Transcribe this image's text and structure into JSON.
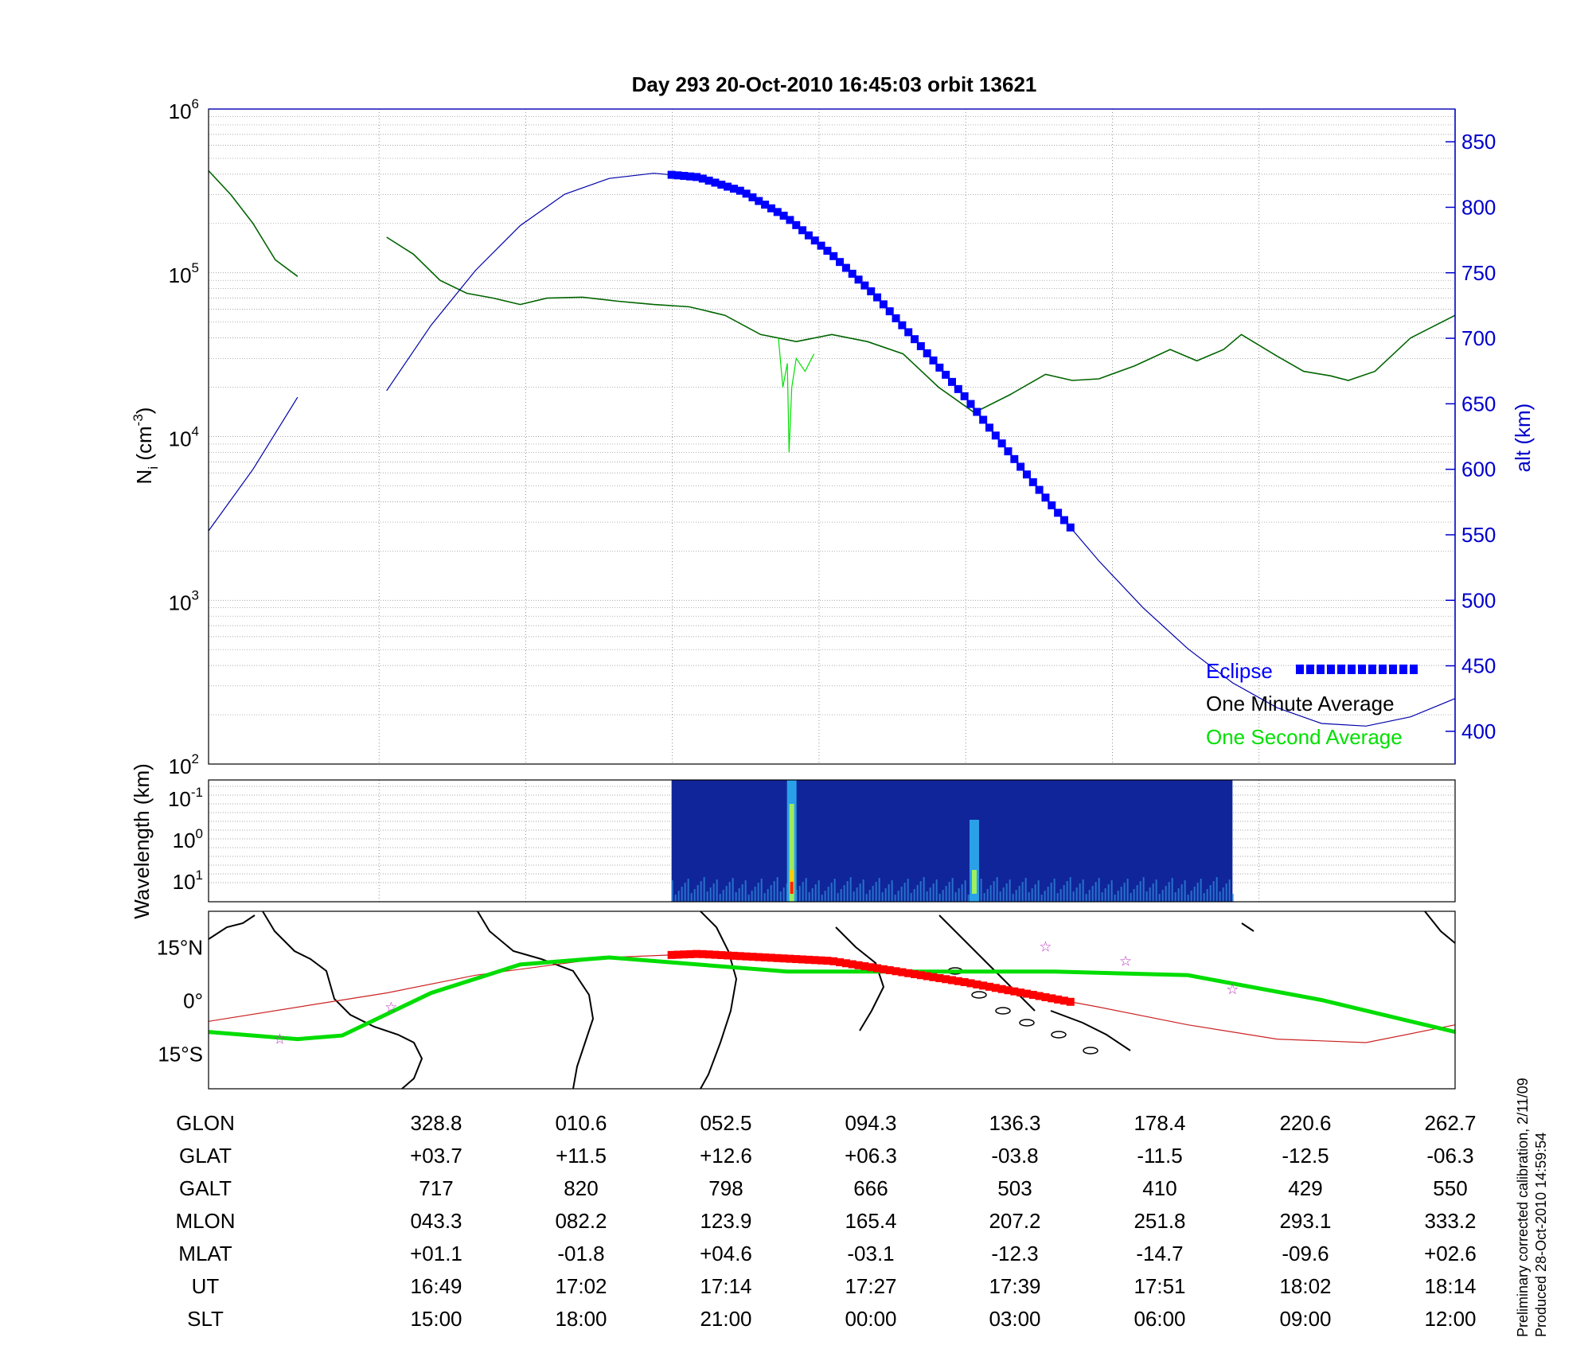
{
  "chart_data": [
    {
      "type": "line",
      "title": "Day 293  20-Oct-2010 16:45:03   orbit 13621",
      "ylabel_left": "N",
      "ylabel_left_sub": "i",
      "ylabel_left_unit_open": " (cm",
      "ylabel_left_unit_exp": "-3",
      "ylabel_left_unit_close": ")",
      "ylabel_right": "alt (km)",
      "yscale_left": "log",
      "ylim_left": [
        100,
        1000000
      ],
      "left_ticks": [
        {
          "base": "10",
          "exp": "6"
        },
        {
          "base": "10",
          "exp": "5"
        },
        {
          "base": "10",
          "exp": "4"
        },
        {
          "base": "10",
          "exp": "3"
        },
        {
          "base": "10",
          "exp": "2"
        }
      ],
      "ylim_right": [
        375,
        875
      ],
      "right_ticks": [
        "850",
        "800",
        "750",
        "700",
        "650",
        "600",
        "550",
        "500",
        "450",
        "400"
      ],
      "x_range": [
        0,
        14
      ],
      "grid": true,
      "legend": {
        "placement": "bottom-right",
        "entries": [
          "Eclipse",
          "One Minute Average",
          "One Second Average"
        ],
        "colors": [
          "#0000ff",
          "#000000",
          "#00e000"
        ]
      },
      "series": [
        {
          "name": "One Minute Average",
          "color": "#006400",
          "segments": [
            [
              [
                0,
                420000
              ],
              [
                0.25,
                300000
              ],
              [
                0.5,
                200000
              ],
              [
                0.75,
                120000
              ],
              [
                1.0,
                95000
              ]
            ],
            [
              [
                2.0,
                165000
              ],
              [
                2.3,
                130000
              ],
              [
                2.6,
                90000
              ],
              [
                2.9,
                75000
              ],
              [
                3.2,
                70000
              ],
              [
                3.5,
                64000
              ],
              [
                3.8,
                70000
              ],
              [
                4.2,
                71000
              ],
              [
                4.6,
                67000
              ],
              [
                5.0,
                64000
              ],
              [
                5.4,
                62000
              ],
              [
                5.8,
                55000
              ],
              [
                6.2,
                42000
              ],
              [
                6.6,
                38000
              ],
              [
                7.0,
                42000
              ],
              [
                7.4,
                38000
              ],
              [
                7.8,
                32000
              ],
              [
                8.2,
                20000
              ],
              [
                8.6,
                14000
              ],
              [
                9.0,
                18000
              ],
              [
                9.4,
                24000
              ],
              [
                9.7,
                22000
              ],
              [
                10.0,
                22500
              ],
              [
                10.4,
                27000
              ],
              [
                10.8,
                34000
              ],
              [
                11.1,
                29000
              ],
              [
                11.4,
                34000
              ],
              [
                11.6,
                42000
              ],
              [
                12.0,
                31000
              ],
              [
                12.3,
                25000
              ],
              [
                12.6,
                23500
              ],
              [
                12.8,
                22000
              ],
              [
                13.1,
                25000
              ],
              [
                13.5,
                40000
              ],
              [
                14.0,
                55000
              ]
            ]
          ]
        },
        {
          "name": "One Second Average",
          "color": "#00e000",
          "segments": [
            [
              [
                6.4,
                40000
              ],
              [
                6.45,
                20000
              ],
              [
                6.5,
                28000
              ],
              [
                6.52,
                8000
              ],
              [
                6.55,
                20000
              ],
              [
                6.6,
                30000
              ],
              [
                6.7,
                25000
              ],
              [
                6.8,
                32000
              ]
            ]
          ]
        },
        {
          "name": "alt (km)",
          "color": "#0000aa",
          "segments": [
            [
              [
                0,
                553
              ],
              [
                0.5,
                600
              ],
              [
                1.0,
                655
              ]
            ],
            [
              [
                2.0,
                660
              ],
              [
                2.5,
                710
              ],
              [
                3.0,
                752
              ],
              [
                3.5,
                786
              ],
              [
                4.0,
                810
              ],
              [
                4.5,
                822
              ],
              [
                5.0,
                826
              ],
              [
                5.5,
                823
              ],
              [
                6.0,
                812
              ],
              [
                6.5,
                792
              ],
              [
                7.0,
                764
              ],
              [
                7.5,
                732
              ],
              [
                8.0,
                694
              ],
              [
                8.5,
                655
              ],
              [
                9.0,
                612
              ],
              [
                9.5,
                570
              ],
              [
                10.0,
                530
              ],
              [
                10.5,
                494
              ],
              [
                11.0,
                463
              ],
              [
                11.5,
                437
              ],
              [
                12.0,
                418
              ],
              [
                12.5,
                406
              ],
              [
                13.0,
                404
              ],
              [
                13.5,
                411
              ],
              [
                14.0,
                425
              ]
            ]
          ]
        }
      ],
      "eclipse": {
        "name": "Eclipse",
        "color": "#0000ff",
        "x_start": 5.2,
        "x_end": 9.7
      }
    },
    {
      "type": "heatmap",
      "ylabel": "Wavelength (km)",
      "yscale": "log",
      "y_ticks": [
        {
          "base": "10",
          "exp": "-1"
        },
        {
          "base": "10",
          "exp": "0"
        },
        {
          "base": "10",
          "exp": "1"
        }
      ],
      "x_start": 5.2,
      "x_end": 11.5,
      "colormap": "jet"
    },
    {
      "type": "scatter",
      "y_ticks": [
        "15°N",
        "0°",
        "15°S"
      ],
      "ylim": [
        -25,
        25
      ],
      "satellite_track": {
        "color": "#00dd00",
        "points": [
          [
            0,
            -9
          ],
          [
            1.0,
            -11
          ],
          [
            1.5,
            -10
          ],
          [
            2.5,
            2
          ],
          [
            3.5,
            10
          ],
          [
            4.5,
            12
          ],
          [
            5.5,
            10
          ],
          [
            6.5,
            8
          ],
          [
            8.0,
            8
          ],
          [
            9.5,
            8
          ],
          [
            11.0,
            7
          ],
          [
            12.5,
            0
          ],
          [
            14.0,
            -9
          ]
        ]
      },
      "magnetic_equator": {
        "color": "#cc2222",
        "points": [
          [
            0,
            -6
          ],
          [
            1.5,
            0
          ],
          [
            2.0,
            2
          ],
          [
            3.0,
            7
          ],
          [
            4.5,
            12
          ],
          [
            5.5,
            13
          ],
          [
            7.0,
            11
          ],
          [
            8.5,
            5
          ],
          [
            10.0,
            -2
          ],
          [
            11.0,
            -7
          ],
          [
            12.0,
            -11
          ],
          [
            13.0,
            -12
          ],
          [
            14.0,
            -7
          ]
        ]
      },
      "eclipse_track": {
        "color": "#ff0000",
        "x_start": 5.2,
        "x_end": 9.7
      },
      "stars": [
        [
          0.8,
          -11
        ],
        [
          2.05,
          -2
        ],
        [
          9.4,
          15
        ],
        [
          10.3,
          11
        ],
        [
          11.5,
          3
        ]
      ]
    }
  ],
  "orbit_table": {
    "rows": [
      {
        "label": "GLON",
        "values": [
          "328.8",
          "010.6",
          "052.5",
          "094.3",
          "136.3",
          "178.4",
          "220.6",
          "262.7"
        ]
      },
      {
        "label": "GLAT",
        "values": [
          "+03.7",
          "+11.5",
          "+12.6",
          "+06.3",
          "-03.8",
          "-11.5",
          "-12.5",
          "-06.3"
        ]
      },
      {
        "label": "GALT",
        "values": [
          "717",
          "820",
          "798",
          "666",
          "503",
          "410",
          "429",
          "550"
        ]
      },
      {
        "label": "MLON",
        "values": [
          "043.3",
          "082.2",
          "123.9",
          "165.4",
          "207.2",
          "251.8",
          "293.1",
          "333.2"
        ]
      },
      {
        "label": "MLAT",
        "values": [
          "+01.1",
          "-01.8",
          "+04.6",
          "-03.1",
          "-12.3",
          "-14.7",
          "-09.6",
          "+02.6"
        ]
      },
      {
        "label": "UT",
        "values": [
          "16:49",
          "17:02",
          "17:14",
          "17:27",
          "17:39",
          "17:51",
          "18:02",
          "18:14"
        ]
      },
      {
        "label": "SLT",
        "values": [
          "15:00",
          "18:00",
          "21:00",
          "00:00",
          "03:00",
          "06:00",
          "09:00",
          "12:00"
        ]
      }
    ]
  },
  "notes": {
    "line1": "Preliminary corrected calibration, 2/11/09",
    "line2": "Produced 28-Oct-2010 14:59:54"
  }
}
